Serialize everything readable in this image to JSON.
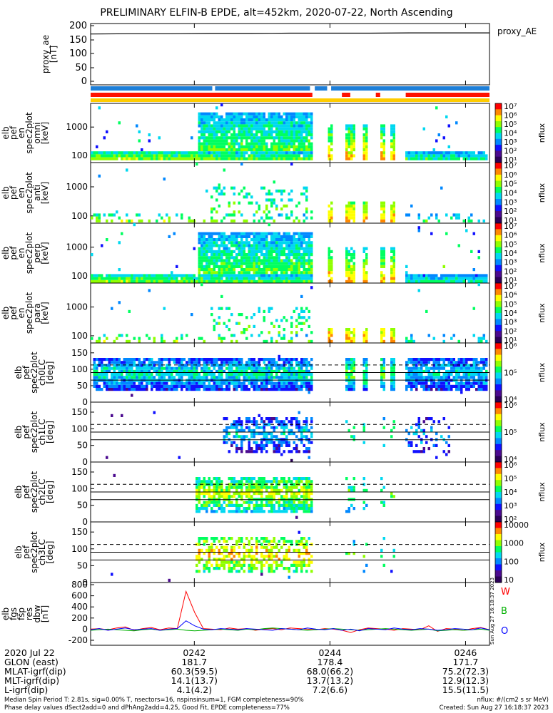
{
  "title": "PRELIMINARY ELFIN-B EPDE, alt=452km, 2020-07-22, North Ascending",
  "colors": {
    "bar_blue": "#1e7fd8",
    "bar_red": "#ff1100",
    "bar_yellow": "#ffcc00",
    "W": "#ff0000",
    "B": "#00b000",
    "O": "#0000ff"
  },
  "colorscale": [
    "#2b0058",
    "#4b0a8f",
    "#1010ff",
    "#0088ff",
    "#00d8f0",
    "#00ff60",
    "#90ff00",
    "#ffff00",
    "#ff8800",
    "#ff0000"
  ],
  "status_bars": {
    "blue_segments": [
      [
        0.0,
        0.305
      ],
      [
        0.312,
        0.55
      ],
      [
        0.562,
        0.593
      ],
      [
        0.603,
        1.0
      ]
    ],
    "red_segments": [
      [
        0.0,
        0.556
      ],
      [
        0.63,
        0.651
      ],
      [
        0.715,
        0.726
      ],
      [
        0.79,
        1.0
      ]
    ],
    "yellow_segments": [
      [
        0.0,
        1.0
      ]
    ]
  },
  "panels": {
    "proxy_ae": {
      "ylabel": "proxy_ae\n[nT]",
      "ticks": [
        "200",
        "150",
        "100",
        "50",
        "0"
      ],
      "legend": "proxy_AE",
      "values": [
        170,
        171,
        171,
        172,
        172,
        173,
        173,
        173,
        174,
        174,
        174
      ]
    },
    "spec_omni": {
      "ylabel": "elb\npef\nen\nspec2plot\nomni\n[keV]",
      "ticks": [
        "1000",
        "100"
      ]
    },
    "spec_anti": {
      "ylabel": "elb\npef\nen\nspec2plot\nanti\n[keV]",
      "ticks": [
        "1000",
        "100"
      ]
    },
    "spec_perp": {
      "ylabel": "elb\npef\nen\nspec2plot\nperp\n[keV]",
      "ticks": [
        "1000",
        "100"
      ]
    },
    "spec_para": {
      "ylabel": "elb\npef\nen\nspec2plot\npara\n[keV]",
      "ticks": [
        "1000",
        "100"
      ]
    },
    "ch0lc": {
      "ylabel": "elb\npef\nspec2plot\nch0LC\n[deg]",
      "ticks": [
        "150",
        "100",
        "50",
        "0"
      ]
    },
    "ch1lc": {
      "ylabel": "elb\npef\nspec2plot\nch1LC\n[deg]",
      "ticks": [
        "150",
        "100",
        "50",
        "0"
      ]
    },
    "ch2lc": {
      "ylabel": "elb\npef\nspec2plot\nch2LC\n[deg]",
      "ticks": [
        "150",
        "100",
        "50",
        "0"
      ]
    },
    "ch3lc": {
      "ylabel": "elb\npef\nspec2plot\nch3LC\n[deg]",
      "ticks": [
        "150",
        "100",
        "50",
        "0"
      ]
    },
    "dbw": {
      "ylabel": "elb\nfgs\nfsp\nres\ndbw\n[nT]",
      "ticks": [
        "800",
        "600",
        "400",
        "200",
        "0",
        "-200"
      ],
      "legend": [
        "W",
        "B",
        "O"
      ],
      "stamp": "Sun Aug 27 16:18:37 2023"
    }
  },
  "colorbars": [
    {
      "label": "nflux",
      "ticks": [
        "10⁷",
        "10⁶",
        "10⁵",
        "10⁴",
        "10³",
        "10²",
        "10¹"
      ]
    },
    {
      "label": "nflux",
      "ticks": [
        "10⁷",
        "10⁶",
        "10⁵",
        "10⁴",
        "10³",
        "10²",
        "10¹"
      ]
    },
    {
      "label": "nflux",
      "ticks": [
        "10⁷",
        "10⁶",
        "10⁵",
        "10⁴",
        "10³",
        "10²",
        "10¹"
      ]
    },
    {
      "label": "nflux",
      "ticks": [
        "10⁷",
        "10⁶",
        "10⁵",
        "10⁴",
        "10³",
        "10²",
        "10¹"
      ]
    },
    {
      "label": "nflux",
      "ticks": [
        "10⁶",
        "10⁵",
        "10⁴"
      ]
    },
    {
      "label": "nflux",
      "ticks": [
        "10⁶",
        "10⁵",
        "10⁴"
      ]
    },
    {
      "label": "nflux",
      "ticks": [
        "10⁶",
        "10⁵",
        "10⁴",
        "10³",
        "10²"
      ]
    },
    {
      "label": "nflux",
      "ticks": [
        "10000",
        "1000",
        "100",
        "10"
      ]
    }
  ],
  "chart_data": {
    "type": "heatmap",
    "title": "PRELIMINARY ELFIN-B EPDE, alt=452km, 2020-07-22, North Ascending",
    "x_time_ticks": [
      "0242",
      "0244",
      "0246"
    ],
    "x_row_headers": [
      "2020 Jul 22",
      "GLON (east)",
      "MLAT-igrf(dip)",
      "MLT-igrf(dip)",
      "L-igrf(dip)"
    ],
    "x_rows": [
      [
        "0242",
        "0244",
        "0246"
      ],
      [
        "181.7",
        "178.4",
        "171.7"
      ],
      [
        "60.3(59.5)",
        "68.0(66.2)",
        "75.2(72.3)"
      ],
      [
        "14.1(13.7)",
        "13.7(13.2)",
        "12.9(12.3)"
      ],
      [
        "4.1(4.2)",
        "7.2(6.6)",
        "15.5(11.5)"
      ]
    ],
    "dbw_series": [
      {
        "name": "W",
        "values": [
          0,
          10,
          -10,
          20,
          40,
          -20,
          10,
          30,
          -10,
          20,
          10,
          680,
          300,
          10,
          0,
          -10,
          20,
          0,
          10,
          -20,
          0,
          10,
          -10,
          20,
          10,
          0,
          -10,
          10,
          0,
          -20,
          -60,
          -10,
          20,
          10,
          0,
          -20,
          10,
          0,
          -10,
          60,
          -40,
          10,
          0,
          -20,
          10,
          30,
          -10
        ]
      },
      {
        "name": "B",
        "values": [
          -20,
          -10,
          0,
          -10,
          -20,
          -30,
          -10,
          0,
          -20,
          -10,
          0,
          -20,
          -30,
          -20,
          -10,
          0,
          -10,
          -20,
          0,
          -10,
          10,
          20,
          10,
          0,
          -10,
          -20,
          -10,
          0,
          10,
          0,
          -10,
          -20,
          -10,
          0,
          10,
          0,
          -10,
          -20,
          -10,
          0,
          -30,
          -20,
          -10,
          -20,
          -10,
          0,
          -20
        ]
      },
      {
        "name": "O",
        "values": [
          -10,
          10,
          -20,
          0,
          20,
          -10,
          0,
          10,
          -20,
          0,
          10,
          150,
          60,
          0,
          -10,
          10,
          0,
          -10,
          10,
          0,
          -10,
          -20,
          10,
          0,
          -10,
          20,
          0,
          -10,
          10,
          -20,
          0,
          -30,
          10,
          0,
          -10,
          20,
          0,
          -10,
          10,
          0,
          -20,
          -10,
          10,
          0,
          -10,
          20,
          -10
        ]
      }
    ]
  },
  "footer": {
    "left1": "Median Spin Period T: 2.81s, sig=0.00% T, nsectors=16, nspinsinsum=1, FGM completeness=90%",
    "left2": "Phase delay values dSect2add=0 and dPhAng2add=4.25, Good Fit, EPDE completeness=77%",
    "right1": "nflux: #/(cm2 s sr MeV)",
    "right2": "Created: Sun Aug 27 16:18:37 2023"
  }
}
